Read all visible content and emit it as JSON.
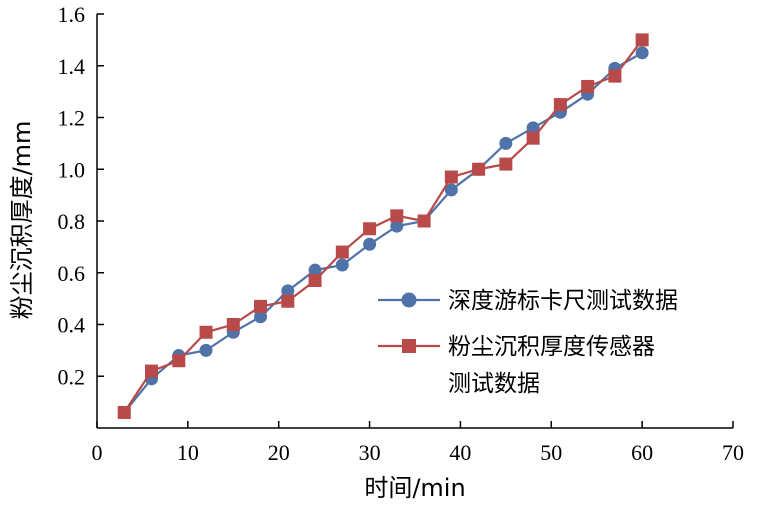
{
  "chart_data": {
    "type": "line",
    "xlabel": "时间/min",
    "ylabel": "粉尘沉积厚度/mm",
    "xlim": [
      0,
      70
    ],
    "ylim": [
      0.0,
      1.6
    ],
    "x_ticks": [
      "0",
      "10",
      "20",
      "30",
      "40",
      "50",
      "60",
      "70"
    ],
    "y_ticks": [
      "0.2",
      "0.4",
      "0.6",
      "0.8",
      "1.0",
      "1.2",
      "1.4",
      "1.6"
    ],
    "grid": false,
    "legend_position": "lower-right",
    "series": [
      {
        "name": "深度游标卡尺测试数据",
        "color": "#4f72a8",
        "marker": "circle",
        "x": [
          3,
          6,
          9,
          12,
          15,
          18,
          21,
          24,
          27,
          30,
          33,
          36,
          39,
          42,
          45,
          48,
          51,
          54,
          57,
          60
        ],
        "y": [
          0.06,
          0.19,
          0.28,
          0.3,
          0.37,
          0.43,
          0.53,
          0.61,
          0.63,
          0.71,
          0.78,
          0.8,
          0.92,
          1.0,
          1.1,
          1.16,
          1.22,
          1.29,
          1.39,
          1.45
        ]
      },
      {
        "name": "粉尘沉积厚度传感器测试数据",
        "legend_lines": [
          "粉尘沉积厚度传感器",
          "测试数据"
        ],
        "color": "#b94a4a",
        "marker": "square",
        "x": [
          3,
          6,
          9,
          12,
          15,
          18,
          21,
          24,
          27,
          30,
          33,
          36,
          39,
          42,
          45,
          48,
          51,
          54,
          57,
          60
        ],
        "y": [
          0.06,
          0.22,
          0.26,
          0.37,
          0.4,
          0.47,
          0.49,
          0.57,
          0.68,
          0.77,
          0.82,
          0.8,
          0.97,
          1.0,
          1.02,
          1.12,
          1.25,
          1.32,
          1.36,
          1.5
        ]
      }
    ]
  }
}
